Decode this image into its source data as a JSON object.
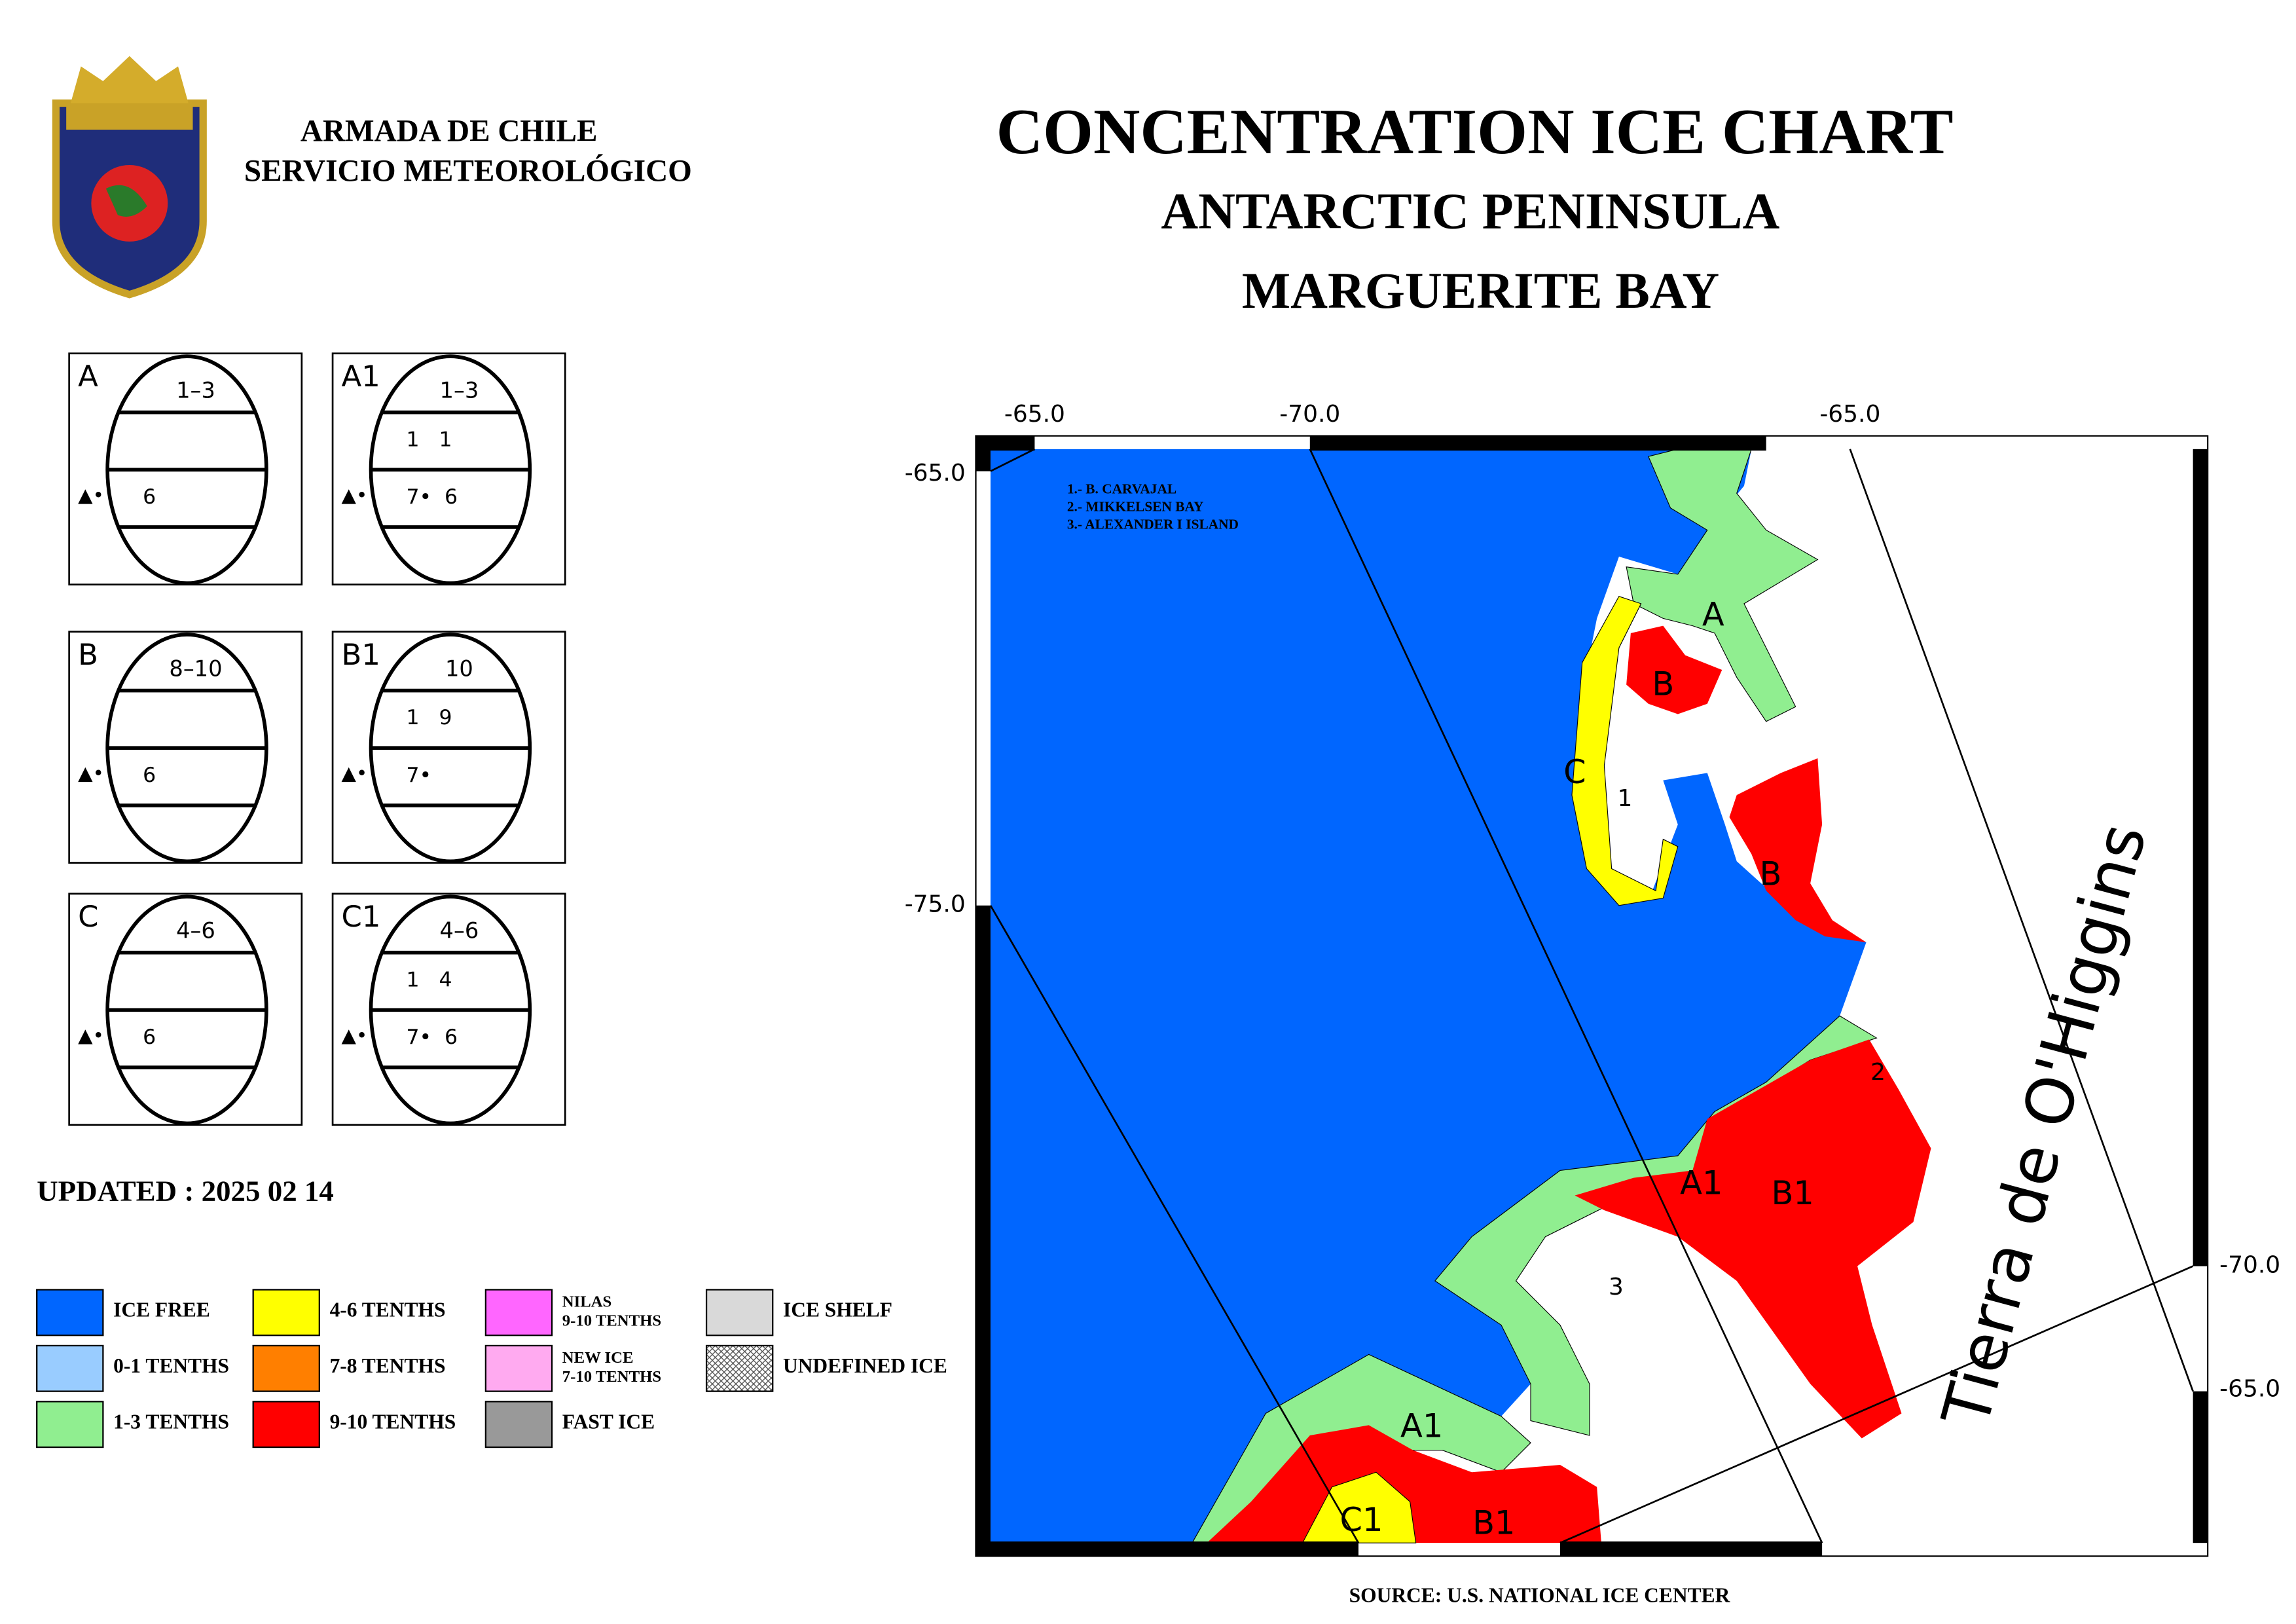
{
  "header": {
    "organization": "ARMADA DE CHILE",
    "service": "SERVICIO METEOROLÓGICO",
    "title": "CONCENTRATION ICE CHART",
    "subtitle": "ANTARCTIC PENINSULA",
    "region": "MARGUERITE BAY"
  },
  "form_symbol": "▲•",
  "egg_codes": [
    {
      "id": "A",
      "total": "1–3",
      "stage": "6"
    },
    {
      "id": "A1",
      "total": "1–3",
      "partials": "1   1",
      "stage": "7•  6"
    },
    {
      "id": "B",
      "total": "8–10",
      "stage": "6"
    },
    {
      "id": "B1",
      "total": "10",
      "partials": "1   9",
      "stage": "7•"
    },
    {
      "id": "C",
      "total": "4–6",
      "stage": "6"
    },
    {
      "id": "C1",
      "total": "4–6",
      "partials": "1   4",
      "stage": "7•  6"
    }
  ],
  "updated": "UPDATED : 2025 02 14",
  "legend": [
    {
      "label": "ICE FREE",
      "color": "#0066ff"
    },
    {
      "label": "0-1 TENTHS",
      "color": "#99ccff"
    },
    {
      "label": "1-3 TENTHS",
      "color": "#90ee90"
    },
    {
      "label": "4-6 TENTHS",
      "color": "#ffff00"
    },
    {
      "label": "7-8 TENTHS",
      "color": "#ff7f00"
    },
    {
      "label": "9-10 TENTHS",
      "color": "#ff0000"
    },
    {
      "label": "NILAS",
      "sublabel": "9-10 TENTHS",
      "color": "#ff66ff"
    },
    {
      "label": "NEW ICE",
      "sublabel": "7-10 TENTHS",
      "color": "#ffaaf0"
    },
    {
      "label": "FAST ICE",
      "color": "#999999"
    },
    {
      "label": "ICE SHELF",
      "color": "#d9d9d9"
    },
    {
      "label": "UNDEFINED ICE",
      "color": "#888888",
      "pattern": "crosshatch"
    }
  ],
  "map": {
    "notes": [
      "1.- B. CARVAJAL",
      "2.- MIKKELSEN BAY",
      "3.- ALEXANDER I ISLAND"
    ],
    "lon_labels": [
      "-65.0",
      "-70.0",
      "-65.0"
    ],
    "lat_labels": [
      "-65.0",
      "-75.0",
      "-70.0",
      "-65.0"
    ],
    "region_labels": [
      "A",
      "B",
      "C",
      "1",
      "B",
      "2",
      "A1",
      "B1",
      "3",
      "A1",
      "C1",
      "B1"
    ],
    "place": "Tierra de O'Higgins"
  },
  "source": "SOURCE: U.S. NATIONAL ICE CENTER"
}
